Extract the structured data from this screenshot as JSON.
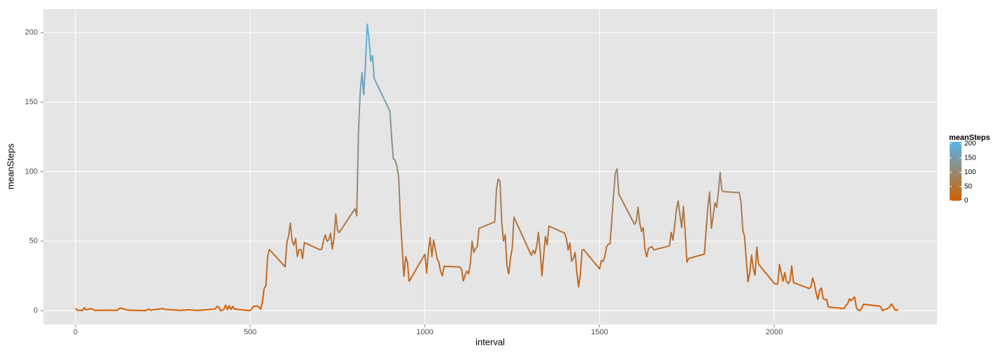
{
  "chart_data": {
    "type": "line",
    "x_label": "interval",
    "y_label": "meanSteps",
    "x": [
      0,
      5,
      20,
      25,
      30,
      45,
      55,
      100,
      120,
      125,
      130,
      150,
      200,
      210,
      215,
      250,
      255,
      300,
      325,
      350,
      400,
      405,
      410,
      415,
      420,
      425,
      430,
      435,
      440,
      445,
      450,
      455,
      500,
      505,
      510,
      520,
      525,
      530,
      535,
      540,
      545,
      550,
      555,
      600,
      605,
      610,
      615,
      620,
      625,
      630,
      635,
      640,
      645,
      650,
      655,
      700,
      705,
      710,
      715,
      720,
      725,
      730,
      735,
      740,
      745,
      750,
      755,
      800,
      805,
      810,
      815,
      820,
      825,
      830,
      835,
      840,
      845,
      850,
      855,
      900,
      905,
      910,
      915,
      920,
      925,
      930,
      935,
      940,
      945,
      950,
      955,
      1000,
      1005,
      1010,
      1015,
      1020,
      1025,
      1030,
      1035,
      1040,
      1045,
      1050,
      1055,
      1100,
      1105,
      1110,
      1115,
      1120,
      1125,
      1130,
      1135,
      1140,
      1145,
      1150,
      1155,
      1200,
      1205,
      1210,
      1215,
      1220,
      1225,
      1230,
      1235,
      1240,
      1245,
      1250,
      1255,
      1300,
      1305,
      1310,
      1315,
      1320,
      1325,
      1330,
      1335,
      1340,
      1345,
      1350,
      1355,
      1400,
      1405,
      1410,
      1415,
      1420,
      1425,
      1430,
      1435,
      1440,
      1445,
      1450,
      1455,
      1500,
      1505,
      1510,
      1515,
      1520,
      1525,
      1530,
      1535,
      1540,
      1545,
      1550,
      1555,
      1600,
      1605,
      1610,
      1615,
      1620,
      1625,
      1630,
      1635,
      1640,
      1645,
      1650,
      1655,
      1700,
      1705,
      1710,
      1715,
      1720,
      1725,
      1730,
      1735,
      1740,
      1745,
      1750,
      1755,
      1800,
      1805,
      1810,
      1815,
      1820,
      1825,
      1830,
      1835,
      1840,
      1845,
      1850,
      1855,
      1900,
      1905,
      1910,
      1915,
      1920,
      1925,
      1930,
      1935,
      1940,
      1945,
      1950,
      1955,
      2000,
      2005,
      2010,
      2015,
      2020,
      2025,
      2030,
      2035,
      2040,
      2045,
      2050,
      2055,
      2100,
      2105,
      2110,
      2115,
      2120,
      2125,
      2130,
      2135,
      2140,
      2145,
      2150,
      2155,
      2200,
      2205,
      2210,
      2215,
      2220,
      2225,
      2230,
      2235,
      2240,
      2245,
      2250,
      2255,
      2300,
      2305,
      2310,
      2315,
      2320,
      2325,
      2330,
      2335,
      2340,
      2345,
      2350,
      2355
    ],
    "values": [
      1.7,
      0.3,
      0.1,
      2.1,
      0.5,
      1.5,
      0.2,
      0.3,
      0.2,
      1.5,
      1.8,
      0.3,
      0,
      1.1,
      0.3,
      1.5,
      0.9,
      0.2,
      0.6,
      0.1,
      1.2,
      3,
      2.6,
      0,
      0.3,
      1.1,
      4,
      0.7,
      3.5,
      0.8,
      3,
      1.1,
      0,
      1.6,
      3,
      3.4,
      2.5,
      1,
      6,
      16,
      18,
      39,
      44,
      31.5,
      49,
      53.8,
      63,
      50,
      47,
      52,
      39,
      44,
      44,
      37.5,
      49,
      43.8,
      44.4,
      50.5,
      54.5,
      49.9,
      51,
      55.7,
      44.3,
      52.3,
      69.5,
      57.8,
      56.2,
      73.4,
      68.2,
      129.4,
      157.5,
      171.2,
      155.4,
      177.3,
      206.2,
      195.9,
      179.6,
      183.4,
      167,
      143.5,
      124,
      109.1,
      108.1,
      103.7,
      95.97,
      66.2,
      45.2,
      24.8,
      38.8,
      34.98,
      21.1,
      40.6,
      26.98,
      42.4,
      52.7,
      38.9,
      50.8,
      44.3,
      37.4,
      34.7,
      28.3,
      25.1,
      31.9,
      31.4,
      29.7,
      21.3,
      25.5,
      28.4,
      26.5,
      33.4,
      49.98,
      42,
      44.6,
      46,
      59.2,
      63.9,
      87.7,
      94.8,
      92.8,
      63.4,
      50.2,
      54.5,
      32.4,
      26.5,
      37.7,
      45.1,
      67.3,
      42.3,
      39.9,
      43.3,
      40.98,
      46.2,
      56.4,
      42.8,
      25.1,
      39.97,
      53.5,
      47.3,
      60.8,
      55.8,
      51.9,
      43.6,
      48.7,
      35.5,
      37.5,
      41.8,
      27.5,
      17.1,
      26.1,
      43.6,
      43.8,
      30,
      36.1,
      35.5,
      38.8,
      45.96,
      47.8,
      48.1,
      65.3,
      82.9,
      98.7,
      102.1,
      83.96,
      62.1,
      64.1,
      74.5,
      63.2,
      56.9,
      59.8,
      43.9,
      38.6,
      44.7,
      45.5,
      46.2,
      43.7,
      46.6,
      56.3,
      50.7,
      61.2,
      72.7,
      78.9,
      68.9,
      59.7,
      75.1,
      56.5,
      34.8,
      37.5,
      40.7,
      58,
      74.7,
      85.3,
      59.3,
      67.8,
      77.7,
      74.2,
      85.3,
      99.5,
      86.6,
      85.6,
      84.9,
      77.8,
      58,
      53.4,
      36.3,
      20.7,
      27.4,
      40,
      30.2,
      25.5,
      45.7,
      33.5,
      19.6,
      19,
      19.3,
      33.3,
      26.8,
      21.2,
      27.3,
      21.3,
      19.5,
      21.3,
      32.3,
      20.2,
      15.9,
      17.2,
      23.5,
      19.2,
      12.5,
      8,
      14.7,
      16.3,
      8.7,
      7.8,
      8.1,
      2.6,
      1.5,
      3.7,
      4.8,
      8.5,
      7.1,
      8.7,
      9.8,
      2.2,
      0.3,
      0.1,
      1.6,
      4.6,
      3.3,
      2.8,
      0,
      0.8,
      0.96,
      1.6,
      2.6,
      4.7,
      3.3,
      0.6,
      0.2,
      1.1
    ],
    "xlim": [
      -92,
      2466
    ],
    "ylim": [
      -10,
      217
    ],
    "xticks": [
      0,
      500,
      1000,
      1500,
      2000
    ],
    "yticks": [
      0,
      50,
      100,
      150,
      200
    ],
    "grid": true,
    "colors": {
      "low": "#d55e00",
      "high": "#56b4e9"
    },
    "legend": {
      "title": "meanSteps",
      "ticks": [
        0,
        50,
        100,
        150,
        200
      ]
    }
  }
}
